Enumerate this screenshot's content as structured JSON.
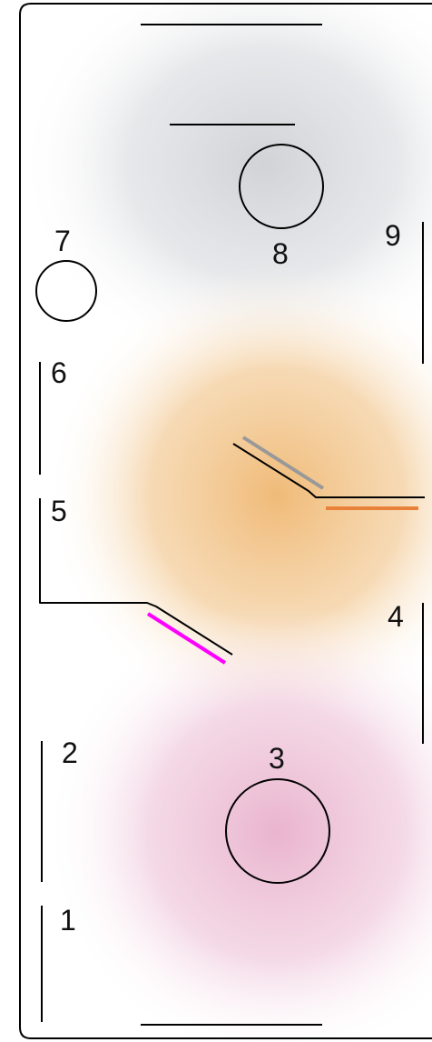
{
  "zone_labels": {
    "z1": "1",
    "z2": "2",
    "z3": "3",
    "z4": "4",
    "z5": "5",
    "z6": "6",
    "z7": "7",
    "z8": "8",
    "z9": "9"
  },
  "colors": {
    "background": "#ffffff",
    "stroke": "#000000",
    "top_glow": "#c9cbd0",
    "middle_glow": "#efb771",
    "bottom_glow": "#e6a7c6",
    "accent_gray": "#999999",
    "accent_orange": "#e8823a",
    "accent_magenta": "#ff00ff"
  }
}
